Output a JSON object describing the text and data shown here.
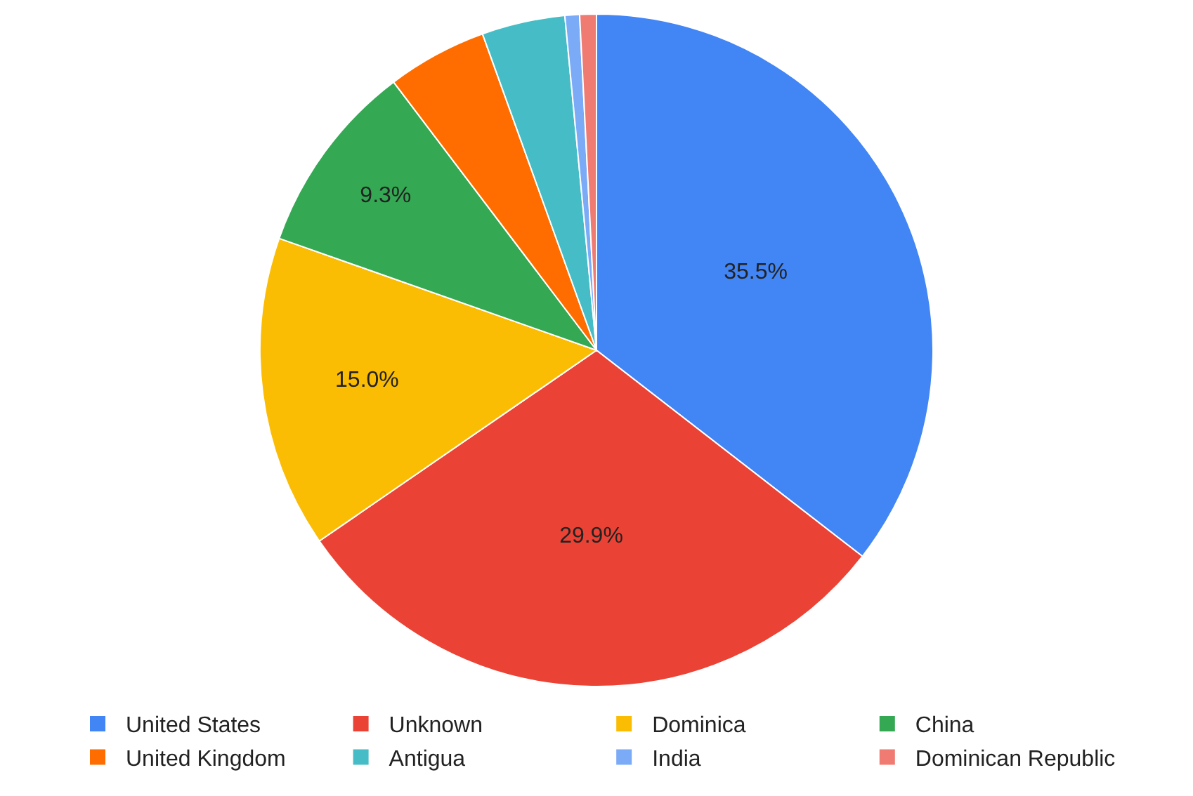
{
  "chart_data": {
    "type": "pie",
    "categories": [
      "United States",
      "Unknown",
      "Dominica",
      "China",
      "United Kingdom",
      "Antigua",
      "India",
      "Dominican Republic"
    ],
    "values": [
      35.5,
      29.9,
      15.0,
      9.3,
      4.8,
      4.0,
      0.7,
      0.8
    ],
    "value_labels": [
      "35.5%",
      "29.9%",
      "15.0%",
      "9.3%",
      null,
      null,
      null,
      null
    ],
    "colors": [
      "#4285f4",
      "#ea4335",
      "#fbbc04",
      "#34a853",
      "#ff6d01",
      "#46bdc6",
      "#7baaf7",
      "#f07b72"
    ],
    "legend": "bottom"
  }
}
